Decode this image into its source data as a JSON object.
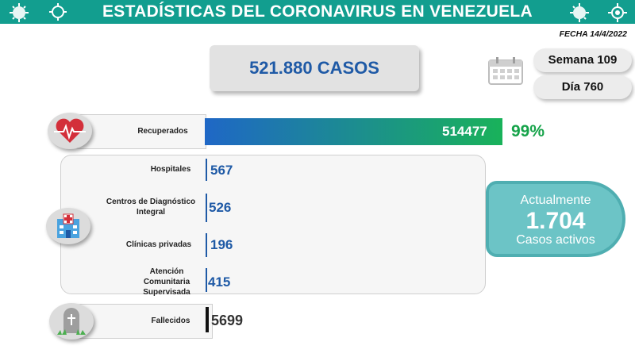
{
  "header": {
    "title": "ESTADÍSTICAS DEL CORONAVIRUS EN VENEZUELA"
  },
  "date": "FECHA 14/4/2022",
  "summary": {
    "cases": "521.880 CASOS",
    "week": "Semana 109",
    "day": "Día 760"
  },
  "recovered": {
    "label": "Recuperados",
    "value": "514477",
    "percent": "99%"
  },
  "care": [
    {
      "label": "Hospitales",
      "value": "567"
    },
    {
      "label": "Centros de Diagnóstico Integral",
      "value": "526"
    },
    {
      "label": "Clínicas privadas",
      "value": "196"
    },
    {
      "label": "Atención Comunitaria Supervisada",
      "value": "415"
    }
  ],
  "active": {
    "line1": "Actualmente",
    "number": "1.704",
    "line3": "Casos activos"
  },
  "deaths": {
    "label": "Fallecidos",
    "value": "5699"
  },
  "colors": {
    "header": "#129e8f",
    "accent_blue": "#1f5aa6",
    "recovered_start": "#1f67c6",
    "recovered_end": "#19b25a",
    "active_box": "#6cc4c6",
    "percent_green": "#16a34a"
  },
  "icons": [
    "virus-icon",
    "calendar-icon",
    "heartbeat-icon",
    "hospital-icon",
    "tombstone-icon"
  ],
  "chart_data": {
    "type": "bar",
    "categories": [
      "Recuperados",
      "Hospitales",
      "Centros de Diagnóstico Integral",
      "Clínicas privadas",
      "Atención Comunitaria Supervisada",
      "Fallecidos"
    ],
    "values": [
      514477,
      567,
      526,
      196,
      415,
      5699
    ],
    "title": "ESTADÍSTICAS DEL CORONAVIRUS EN VENEZUELA"
  }
}
